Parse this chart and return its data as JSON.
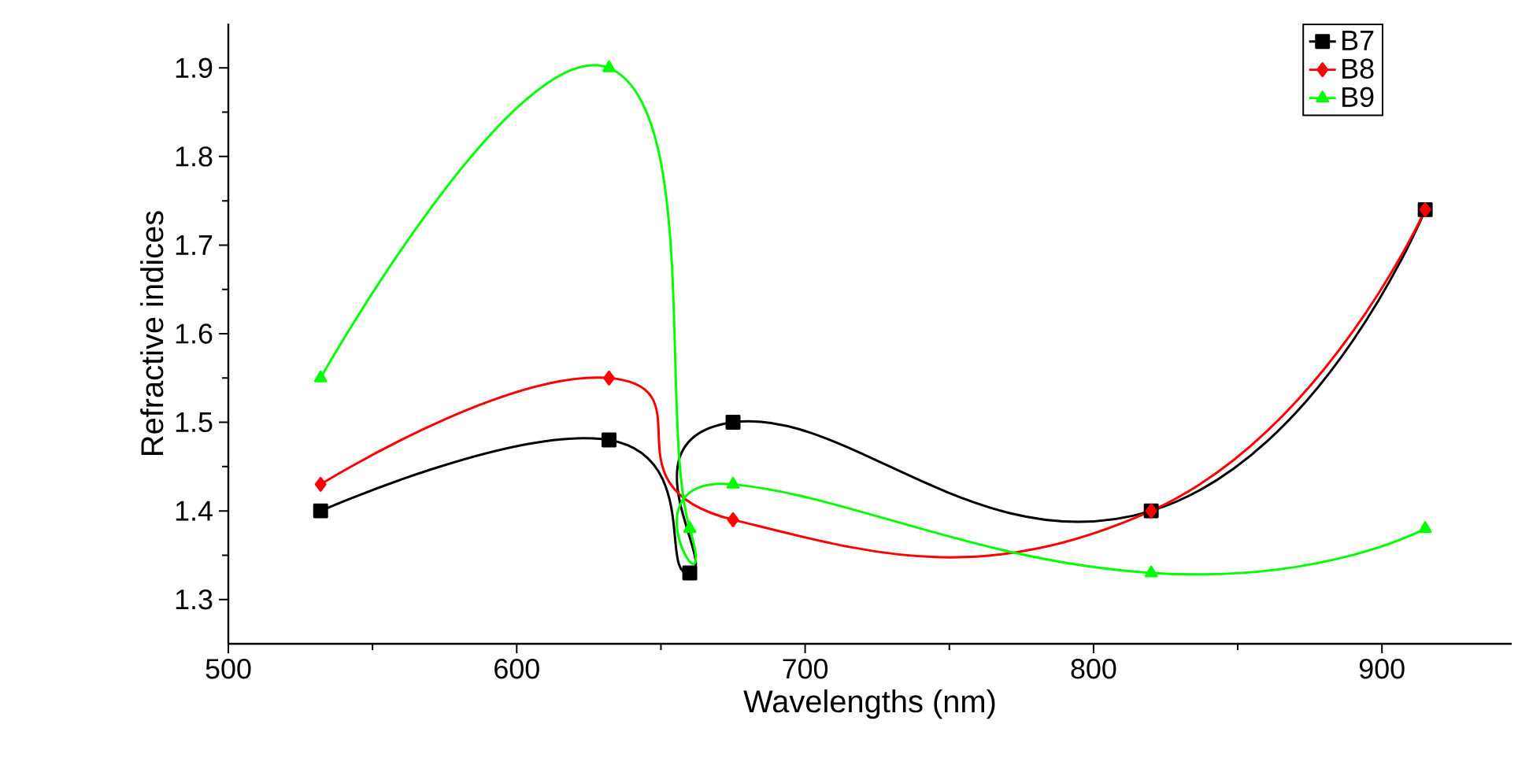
{
  "chart_data": {
    "type": "line",
    "xlabel": "Wavelengths (nm)",
    "ylabel": "Refractive indices",
    "x": [
      532,
      632,
      660,
      675,
      820,
      915
    ],
    "series": [
      {
        "name": "B7",
        "color": "#000000",
        "marker": "square",
        "values": [
          1.4,
          1.48,
          1.33,
          1.5,
          1.4,
          1.74
        ]
      },
      {
        "name": "B8",
        "color": "#ff0000",
        "marker": "diamond",
        "values": [
          1.43,
          1.55,
          null,
          1.39,
          1.4,
          1.74
        ]
      },
      {
        "name": "B9",
        "color": "#00ff00",
        "marker": "triangle",
        "values": [
          1.55,
          1.9,
          1.38,
          1.43,
          1.33,
          1.38
        ]
      }
    ],
    "xlim": [
      500,
      945
    ],
    "ylim": [
      1.25,
      1.95
    ],
    "xticks": [
      500,
      600,
      700,
      800,
      900
    ],
    "yticks": [
      1.3,
      1.4,
      1.5,
      1.6,
      1.7,
      1.8,
      1.9
    ],
    "legend": "top right",
    "line_style": "solid"
  }
}
